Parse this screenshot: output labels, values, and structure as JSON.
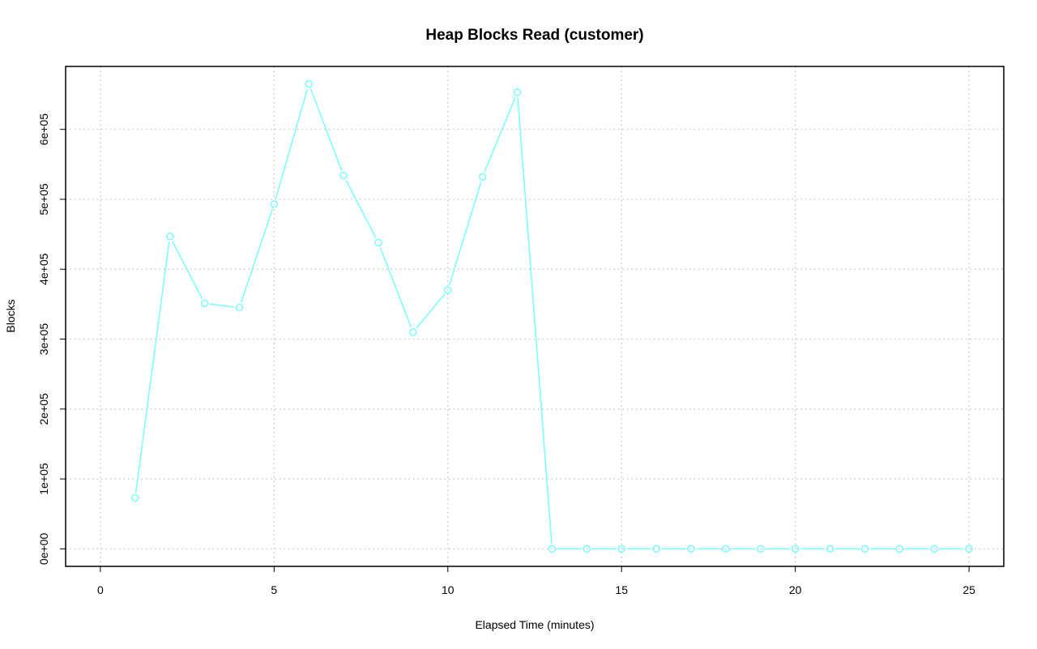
{
  "chart_data": {
    "type": "line",
    "title": "Heap Blocks Read (customer)",
    "xlabel": "Elapsed Time (minutes)",
    "ylabel": "Blocks",
    "xlim": [
      -1,
      26
    ],
    "ylim": [
      -25000,
      690000
    ],
    "x_ticks": [
      0,
      5,
      10,
      15,
      20,
      25
    ],
    "x_tick_labels": [
      "0",
      "5",
      "10",
      "15",
      "20",
      "25"
    ],
    "y_ticks": [
      0,
      100000,
      200000,
      300000,
      400000,
      500000,
      600000
    ],
    "y_tick_labels": [
      "0e+00",
      "1e+05",
      "2e+05",
      "3e+05",
      "4e+05",
      "5e+05",
      "6e+05"
    ],
    "grid": true,
    "series": [
      {
        "color": "#7ffdfd",
        "marker": "open-circle",
        "x": [
          1,
          2,
          3,
          4,
          5,
          6,
          7,
          8,
          9,
          10,
          11,
          12,
          13,
          14,
          15,
          16,
          17,
          18,
          19,
          20,
          21,
          22,
          23,
          24,
          25
        ],
        "y": [
          73000,
          447000,
          351000,
          345000,
          493000,
          665000,
          534000,
          438000,
          310000,
          370000,
          532000,
          653000,
          0,
          0,
          0,
          0,
          0,
          0,
          0,
          0,
          0,
          0,
          0,
          0,
          0
        ]
      }
    ]
  }
}
